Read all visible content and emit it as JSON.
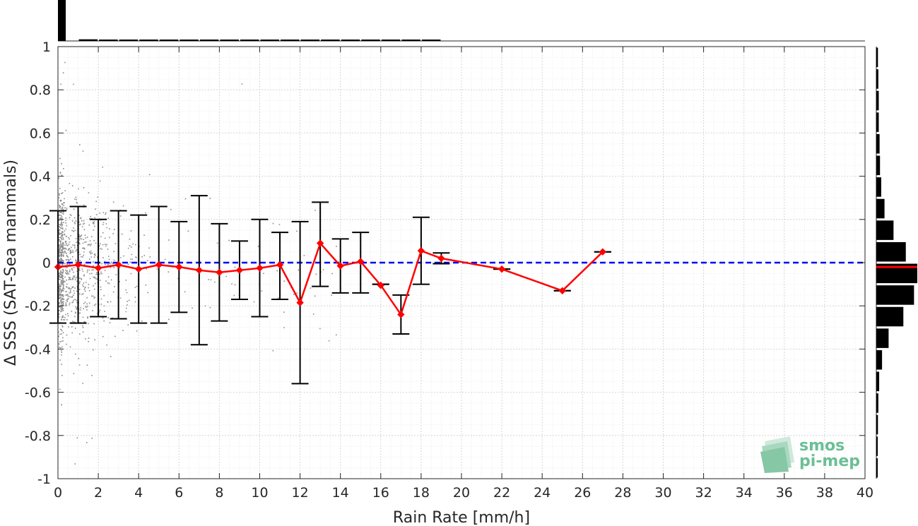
{
  "chart_data": {
    "type": "line",
    "xlabel": "Rain Rate [mm/h]",
    "ylabel": "Δ SSS (SAT-Sea mammals)",
    "xlim": [
      0,
      40
    ],
    "ylim": [
      -1,
      1
    ],
    "x_ticks": [
      0,
      2,
      4,
      6,
      8,
      10,
      12,
      14,
      16,
      18,
      20,
      22,
      24,
      26,
      28,
      30,
      32,
      34,
      36,
      38,
      40
    ],
    "y_ticks": [
      -1,
      -0.8,
      -0.6,
      -0.4,
      -0.2,
      0,
      0.2,
      0.4,
      0.6,
      0.8,
      1
    ],
    "grid": true,
    "reference_line": {
      "y": 0,
      "style": "dashed",
      "color": "#0000ff"
    },
    "series": [
      {
        "style": "red line with diamond markers and black error bars",
        "color": "#ff0000",
        "points": [
          {
            "x": 0,
            "y": -0.02,
            "lo": -0.28,
            "hi": 0.24
          },
          {
            "x": 1,
            "y": -0.01,
            "lo": -0.28,
            "hi": 0.26
          },
          {
            "x": 2,
            "y": -0.025,
            "lo": -0.25,
            "hi": 0.2
          },
          {
            "x": 3,
            "y": -0.01,
            "lo": -0.26,
            "hi": 0.24
          },
          {
            "x": 4,
            "y": -0.03,
            "lo": -0.28,
            "hi": 0.22
          },
          {
            "x": 5,
            "y": -0.01,
            "lo": -0.28,
            "hi": 0.26
          },
          {
            "x": 6,
            "y": -0.02,
            "lo": -0.23,
            "hi": 0.19
          },
          {
            "x": 7,
            "y": -0.035,
            "lo": -0.38,
            "hi": 0.31
          },
          {
            "x": 8,
            "y": -0.045,
            "lo": -0.27,
            "hi": 0.18
          },
          {
            "x": 9,
            "y": -0.035,
            "lo": -0.17,
            "hi": 0.1
          },
          {
            "x": 10,
            "y": -0.025,
            "lo": -0.25,
            "hi": 0.2
          },
          {
            "x": 11,
            "y": -0.01,
            "lo": -0.17,
            "hi": 0.14
          },
          {
            "x": 12,
            "y": -0.185,
            "lo": -0.56,
            "hi": 0.19
          },
          {
            "x": 13,
            "y": 0.09,
            "lo": -0.11,
            "hi": 0.28
          },
          {
            "x": 14,
            "y": -0.015,
            "lo": -0.14,
            "hi": 0.11
          },
          {
            "x": 15,
            "y": 0.005,
            "lo": -0.14,
            "hi": 0.14
          },
          {
            "x": 16,
            "y": -0.105,
            "lo": -0.1,
            "hi": -0.1
          },
          {
            "x": 17,
            "y": -0.24,
            "lo": -0.33,
            "hi": -0.15
          },
          {
            "x": 18,
            "y": 0.055,
            "lo": -0.1,
            "hi": 0.21
          },
          {
            "x": 19,
            "y": 0.02,
            "lo": -0.005,
            "hi": 0.045
          },
          {
            "x": 22,
            "y": -0.03,
            "lo": -0.03,
            "hi": -0.03
          },
          {
            "x": 25,
            "y": -0.13,
            "lo": -0.13,
            "hi": -0.13
          },
          {
            "x": 27,
            "y": 0.05,
            "lo": 0.05,
            "hi": 0.05
          }
        ]
      }
    ],
    "top_histogram": {
      "description": "marginal count of rain rate, dominated by 0 mm/h",
      "bins_x": [
        0,
        1,
        2,
        3,
        4,
        5,
        6,
        7,
        8,
        9,
        10,
        11,
        12,
        13,
        14,
        15,
        16,
        17,
        18
      ],
      "relative_heights": [
        1.0,
        0.04,
        0.03,
        0.02,
        0.015,
        0.012,
        0.01,
        0.01,
        0.008,
        0.008,
        0.006,
        0.006,
        0.006,
        0.005,
        0.005,
        0.005,
        0.004,
        0.004,
        0.004
      ]
    },
    "right_histogram": {
      "description": "marginal distribution of Δ SSS",
      "median_line_color": "#ff0000",
      "median_y": -0.02,
      "bins": [
        {
          "y": 0.95,
          "w": 0.04
        },
        {
          "y": 0.85,
          "w": 0.05
        },
        {
          "y": 0.75,
          "w": 0.06
        },
        {
          "y": 0.65,
          "w": 0.06
        },
        {
          "y": 0.55,
          "w": 0.08
        },
        {
          "y": 0.45,
          "w": 0.09
        },
        {
          "y": 0.35,
          "w": 0.12
        },
        {
          "y": 0.25,
          "w": 0.2
        },
        {
          "y": 0.15,
          "w": 0.42
        },
        {
          "y": 0.05,
          "w": 0.72
        },
        {
          "y": -0.05,
          "w": 1.0
        },
        {
          "y": -0.15,
          "w": 0.92
        },
        {
          "y": -0.25,
          "w": 0.66
        },
        {
          "y": -0.35,
          "w": 0.3
        },
        {
          "y": -0.45,
          "w": 0.14
        },
        {
          "y": -0.55,
          "w": 0.07
        },
        {
          "y": -0.65,
          "w": 0.05
        },
        {
          "y": -0.75,
          "w": 0.04
        },
        {
          "y": -0.85,
          "w": 0.03
        },
        {
          "y": -0.95,
          "w": 0.02
        }
      ]
    },
    "scatter": {
      "color": "#8c8c8c",
      "description": "raw matchup points, dense near 0–6 mm/h"
    }
  },
  "logo": {
    "line1": "smos",
    "line2": "pi-mep"
  }
}
